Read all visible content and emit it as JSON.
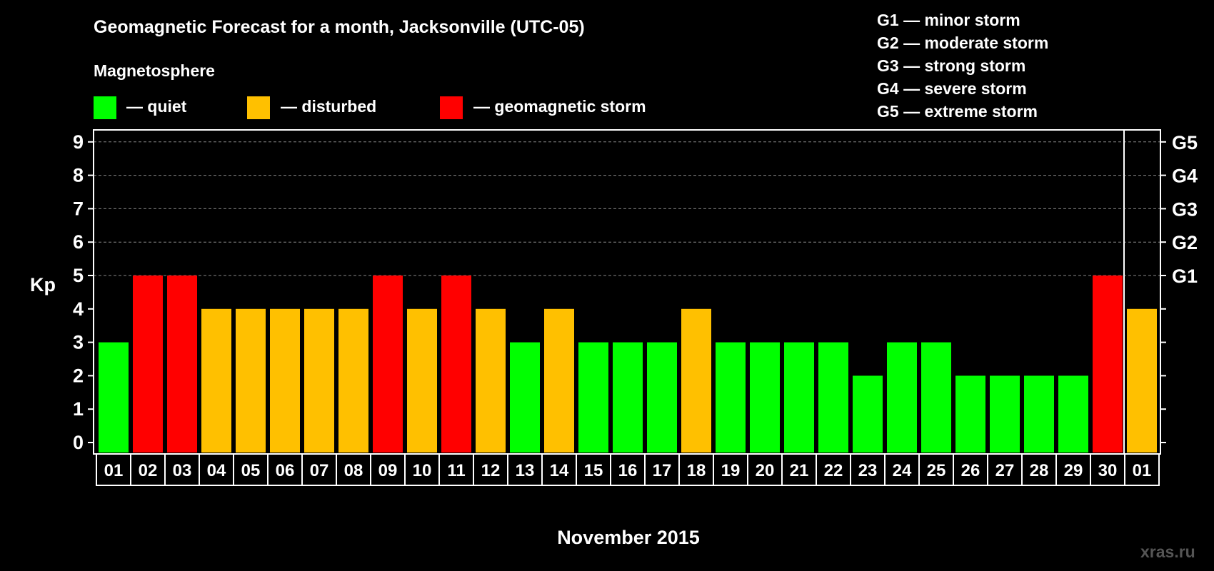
{
  "title": "Geomagnetic Forecast for a month, Jacksonville (UTC-05)",
  "legend": {
    "heading": "Magnetosphere",
    "items": [
      {
        "label": "— quiet",
        "color": "#00ff00"
      },
      {
        "label": "— disturbed",
        "color": "#ffc000"
      },
      {
        "label": "— geomagnetic storm",
        "color": "#ff0000"
      }
    ]
  },
  "g_scale": [
    "G1 — minor storm",
    "G2 — moderate storm",
    "G3 — strong storm",
    "G4 — severe storm",
    "G5 — extreme storm"
  ],
  "watermark": "xras.ru",
  "chart_data": {
    "type": "bar",
    "title": "Geomagnetic Forecast for a month, Jacksonville (UTC-05)",
    "xlabel": "November 2015",
    "ylabel": "Kp",
    "ylim": [
      0,
      9
    ],
    "yticks": [
      "0",
      "1",
      "2",
      "3",
      "4",
      "5",
      "6",
      "7",
      "8",
      "9"
    ],
    "right_ticks": {
      "5": "G1",
      "6": "G2",
      "7": "G3",
      "8": "G4",
      "9": "G5"
    },
    "categories": [
      "01",
      "02",
      "03",
      "04",
      "05",
      "06",
      "07",
      "08",
      "09",
      "10",
      "11",
      "12",
      "13",
      "14",
      "15",
      "16",
      "17",
      "18",
      "19",
      "20",
      "21",
      "22",
      "23",
      "24",
      "25",
      "26",
      "27",
      "28",
      "29",
      "30",
      "01"
    ],
    "values": [
      3,
      5,
      5,
      4,
      4,
      4,
      4,
      4,
      5,
      4,
      5,
      4,
      3,
      4,
      3,
      3,
      3,
      4,
      3,
      3,
      3,
      3,
      2,
      3,
      3,
      2,
      2,
      2,
      2,
      5,
      4
    ],
    "grid": "dashed at 5-9",
    "colors": {
      "quiet": "#00ff00",
      "disturbed": "#ffc000",
      "storm": "#ff0000"
    }
  }
}
